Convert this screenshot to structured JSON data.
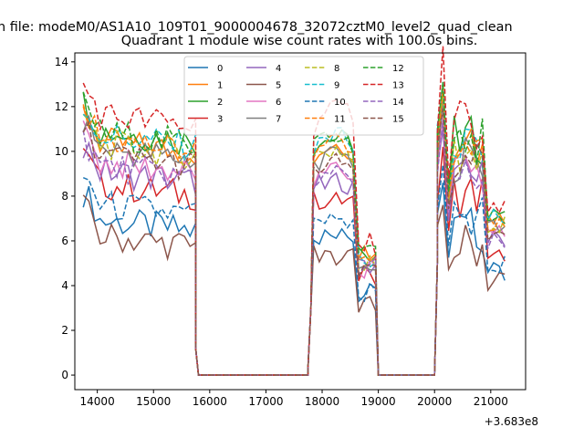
{
  "chart_data": {
    "type": "line",
    "suptitle": "n file: modeM0/AS1A10_109T01_9000004678_32072cztM0_level2_quad_clean",
    "title": "Quadrant 1 module wise count rates with 100.0s bins.",
    "xlabel": "",
    "ylabel": "",
    "x_offset_label": "+3.683e8",
    "xlim": [
      13600,
      21620
    ],
    "ylim": [
      -0.65,
      14.4
    ],
    "xticks": [
      14000,
      15000,
      16000,
      17000,
      18000,
      19000,
      20000,
      21000
    ],
    "yticks": [
      0,
      2,
      4,
      6,
      8,
      10,
      12,
      14
    ],
    "grid": false,
    "legend_position": "top-center",
    "legend_columns": 4,
    "segments": [
      {
        "start": 13750,
        "n": 21,
        "step": 100
      },
      {
        "start": 15850,
        "n": 20,
        "step": 100
      },
      {
        "start": 17850,
        "n": 12,
        "step": 100
      },
      {
        "start": 19050,
        "n": 10,
        "step": 100
      },
      {
        "start": 20050,
        "n": 13,
        "step": 100
      }
    ],
    "transitions": {
      "drop1": [
        [
          15750,
          1.2
        ],
        [
          15800,
          0.0
        ]
      ],
      "rise2": [
        [
          17750,
          0.4
        ],
        [
          17800,
          3.0
        ]
      ],
      "drop2": [
        [
          19000,
          0.0
        ]
      ],
      "rise3": [
        [
          20000,
          0.0
        ],
        [
          20050,
          5.0
        ]
      ]
    },
    "series": [
      {
        "name": "0",
        "color": "#1f77b4",
        "dash": "solid",
        "base": 7.0,
        "bump": 0.0
      },
      {
        "name": "1",
        "color": "#ff7f0e",
        "dash": "solid",
        "base": 10.5,
        "bump": 0.6
      },
      {
        "name": "2",
        "color": "#2ca02c",
        "dash": "solid",
        "base": 11.0,
        "bump": 0.4
      },
      {
        "name": "3",
        "color": "#d62728",
        "dash": "solid",
        "base": 8.6,
        "bump": 0.0
      },
      {
        "name": "4",
        "color": "#9467bd",
        "dash": "solid",
        "base": 9.2,
        "bump": 0.2
      },
      {
        "name": "5",
        "color": "#8c564b",
        "dash": "solid",
        "base": 6.3,
        "bump": -0.3
      },
      {
        "name": "6",
        "color": "#e377c2",
        "dash": "solid",
        "base": 9.6,
        "bump": 0.3
      },
      {
        "name": "7",
        "color": "#7f7f7f",
        "dash": "solid",
        "base": 10.2,
        "bump": 0.5
      },
      {
        "name": "8",
        "color": "#bcbd22",
        "dash": "dashed",
        "base": 10.4,
        "bump": 0.5
      },
      {
        "name": "9",
        "color": "#17becf",
        "dash": "dashed",
        "base": 10.8,
        "bump": 0.7
      },
      {
        "name": "10",
        "color": "#1f77b4",
        "dash": "dashed",
        "base": 7.7,
        "bump": 0.1
      },
      {
        "name": "11",
        "color": "#ff7f0e",
        "dash": "dashed",
        "base": 10.6,
        "bump": 0.8
      },
      {
        "name": "12",
        "color": "#2ca02c",
        "dash": "dashed",
        "base": 10.9,
        "bump": 0.6
      },
      {
        "name": "13",
        "color": "#d62728",
        "dash": "dashed",
        "base": 11.7,
        "bump": 1.4
      },
      {
        "name": "14",
        "color": "#9467bd",
        "dash": "dashed",
        "base": 9.4,
        "bump": 0.4
      },
      {
        "name": "15",
        "color": "#8c564b",
        "dash": "dashed",
        "base": 9.9,
        "bump": 0.4
      }
    ]
  }
}
